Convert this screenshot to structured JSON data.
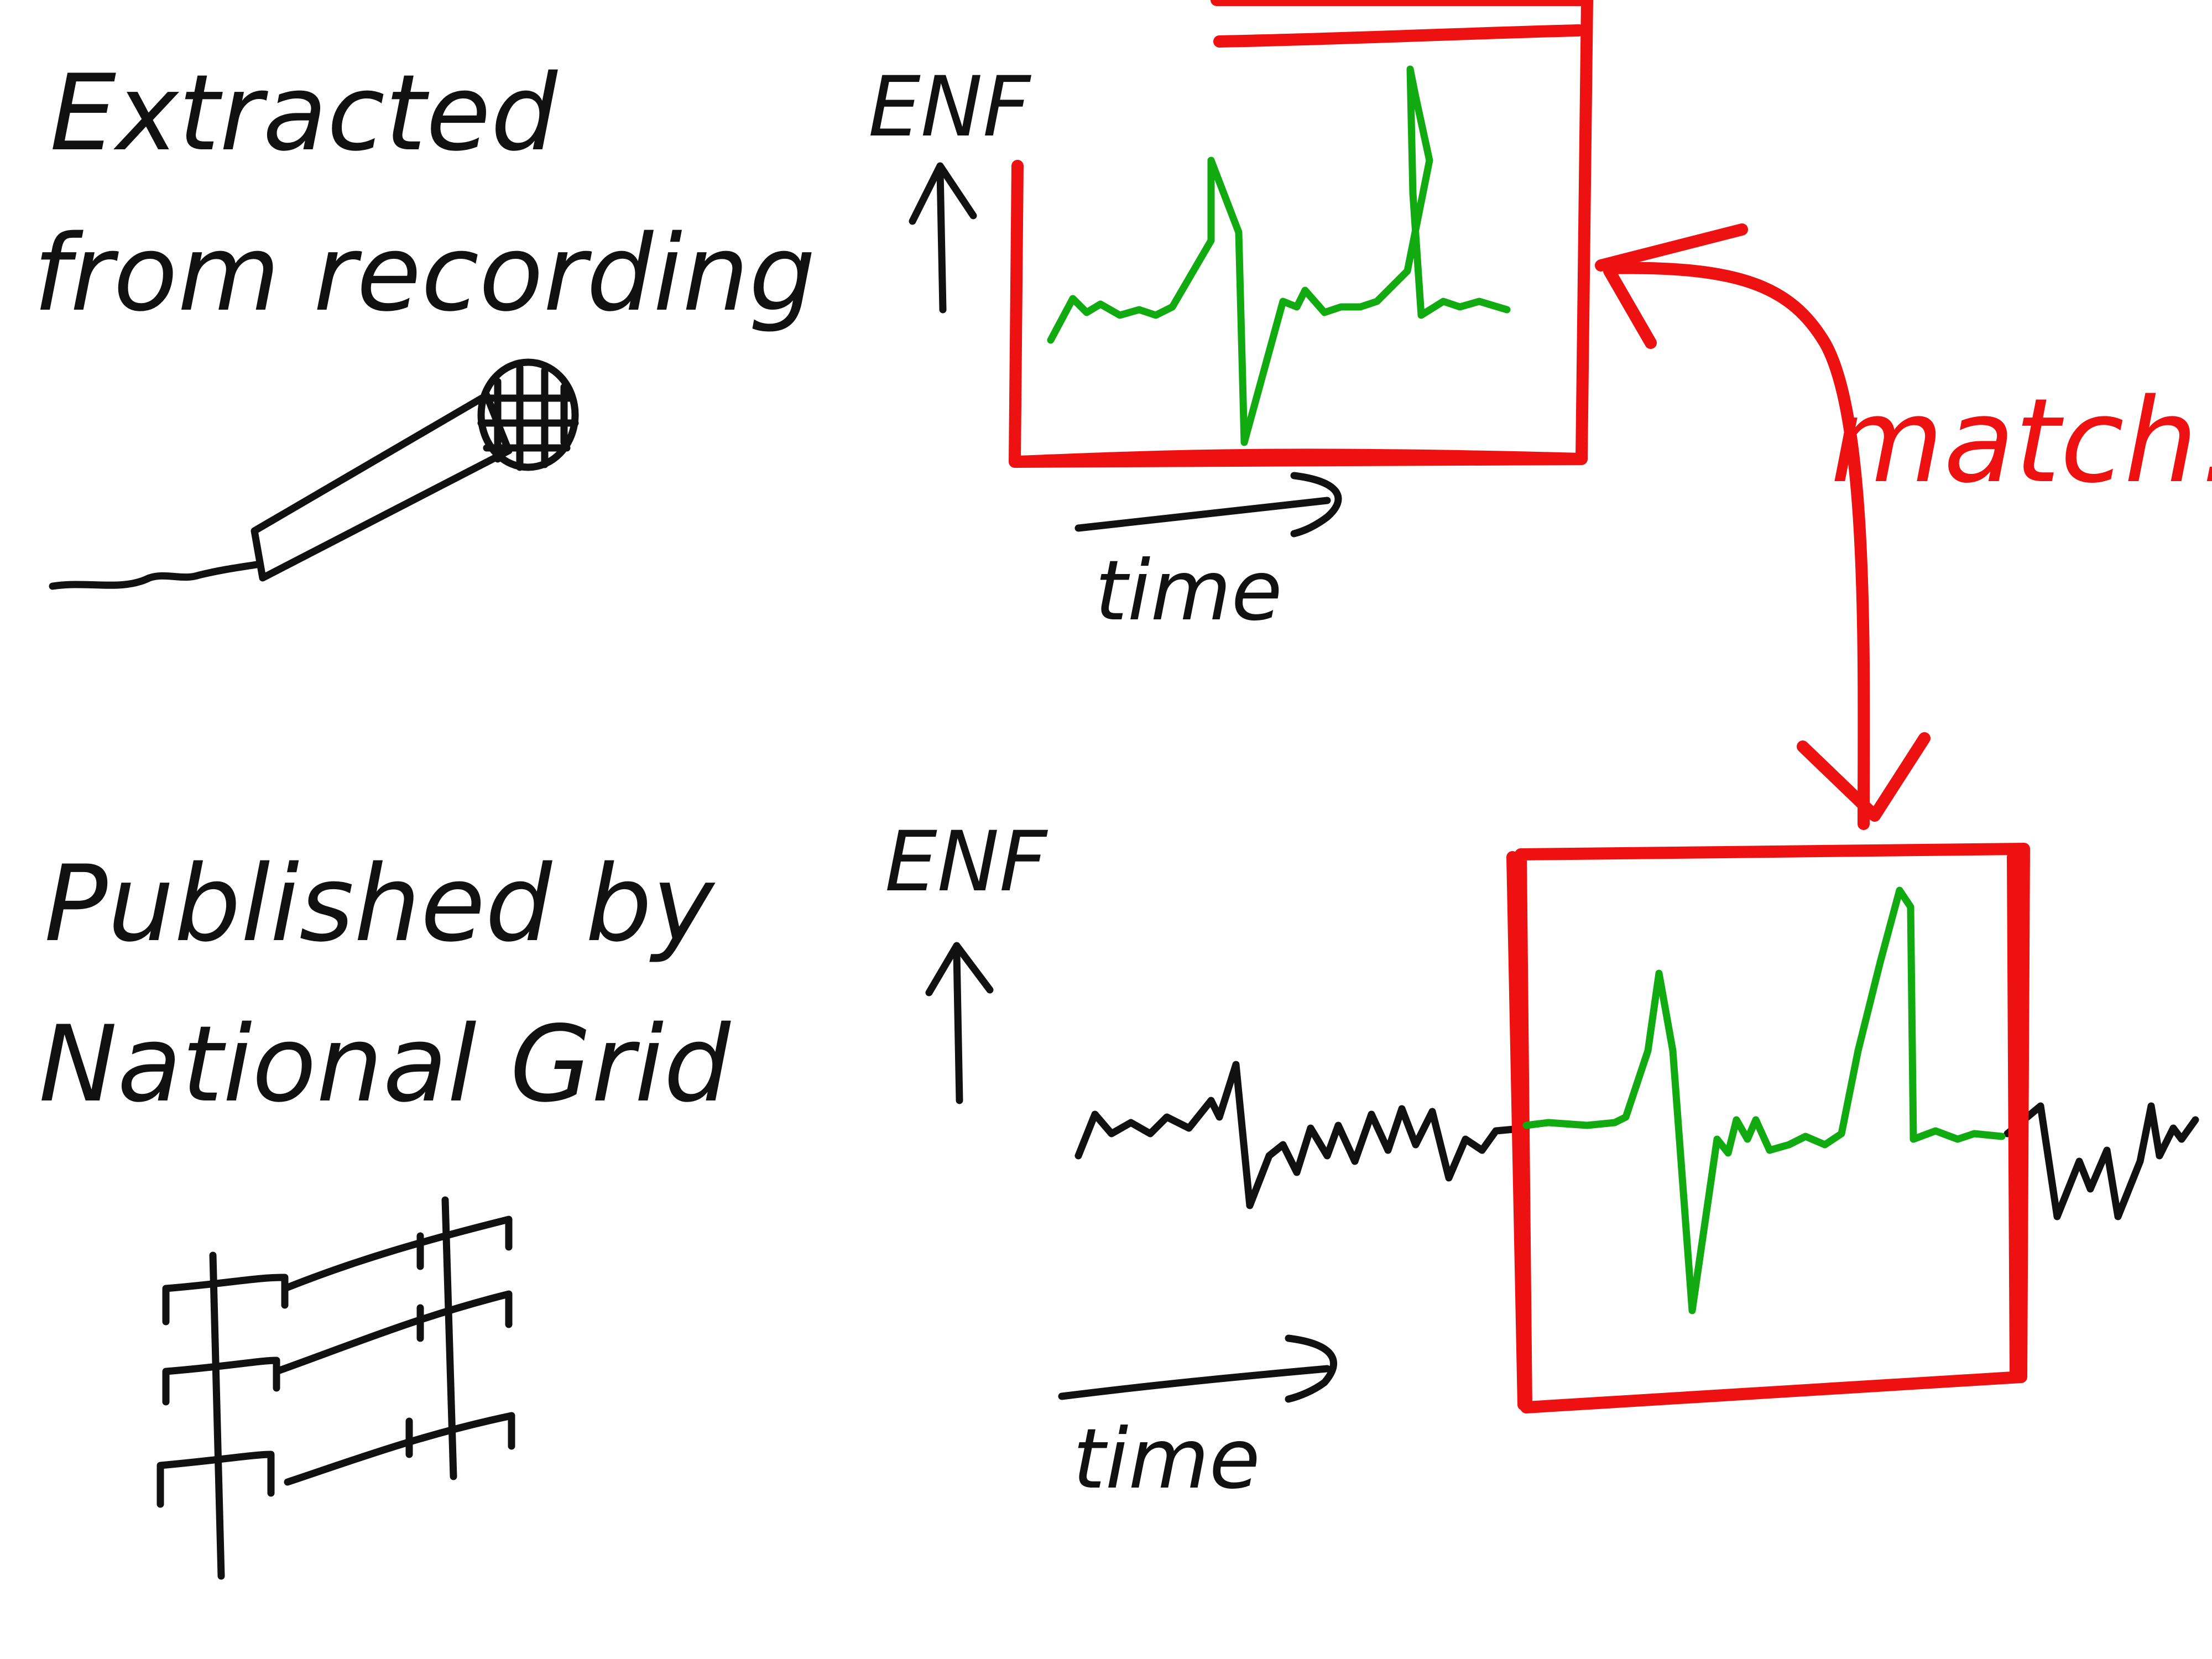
{
  "colors": {
    "ink": "#111111",
    "highlight": "#ee1111",
    "signal": "#11aa11",
    "background": "#ffffff"
  },
  "top": {
    "title_line1": "Extracted",
    "title_line2": "from recording",
    "icon": "microphone-icon",
    "ylabel": "ENF",
    "xlabel": "time"
  },
  "bottom": {
    "title_line1": "Published by",
    "title_line2": "National Grid",
    "icon": "power-grid-icon",
    "ylabel": "ENF",
    "xlabel": "time"
  },
  "match_label": "match!"
}
